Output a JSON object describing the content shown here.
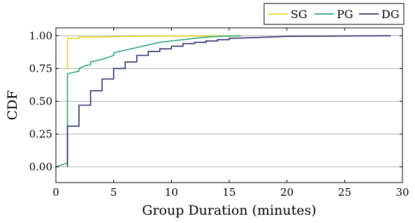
{
  "chart_data": {
    "type": "line",
    "title": "",
    "xlabel": "Group Duration (minutes)",
    "ylabel": "CDF",
    "xlim": [
      0,
      30
    ],
    "ylim": [
      -0.12,
      1.06
    ],
    "xticks": [
      0,
      5,
      10,
      15,
      20,
      25,
      30
    ],
    "yticks": [
      0.0,
      0.25,
      0.5,
      0.75,
      1.0
    ],
    "ytick_labels": [
      "0.00",
      "0.25",
      "0.50",
      "0.75",
      "1.00"
    ],
    "grid": "horizontal",
    "legend_position": "top-right, above plot",
    "step": true,
    "series": [
      {
        "name": "SG",
        "color": "#e6d81a",
        "points": [
          [
            0.9,
            0.75
          ],
          [
            1,
            0.75
          ],
          [
            1,
            0.98
          ],
          [
            2,
            0.98
          ],
          [
            2,
            0.99
          ],
          [
            4,
            0.99
          ],
          [
            6,
            0.995
          ],
          [
            10,
            0.997
          ],
          [
            16,
            1.0
          ]
        ]
      },
      {
        "name": "PG",
        "color": "#2ea67a",
        "points": [
          [
            0,
            0.0
          ],
          [
            1,
            0.03
          ],
          [
            1,
            0.71
          ],
          [
            1.5,
            0.72
          ],
          [
            2,
            0.73
          ],
          [
            2,
            0.75
          ],
          [
            2.5,
            0.77
          ],
          [
            3,
            0.78
          ],
          [
            3,
            0.8
          ],
          [
            4,
            0.82
          ],
          [
            5,
            0.85
          ],
          [
            5,
            0.87
          ],
          [
            6,
            0.89
          ],
          [
            7,
            0.91
          ],
          [
            8,
            0.93
          ],
          [
            9,
            0.95
          ],
          [
            10,
            0.96
          ],
          [
            11,
            0.97
          ],
          [
            12,
            0.98
          ],
          [
            13,
            0.99
          ],
          [
            14,
            0.995
          ],
          [
            16,
            1.0
          ]
        ]
      },
      {
        "name": "DG",
        "color": "#2e2f6e",
        "points": [
          [
            1,
            0.0
          ],
          [
            1,
            0.31
          ],
          [
            2,
            0.31
          ],
          [
            2,
            0.47
          ],
          [
            3,
            0.47
          ],
          [
            3,
            0.58
          ],
          [
            4,
            0.58
          ],
          [
            4,
            0.67
          ],
          [
            5,
            0.67
          ],
          [
            5,
            0.75
          ],
          [
            6,
            0.75
          ],
          [
            6,
            0.8
          ],
          [
            7,
            0.8
          ],
          [
            7,
            0.85
          ],
          [
            8,
            0.85
          ],
          [
            8,
            0.88
          ],
          [
            9,
            0.88
          ],
          [
            9,
            0.9
          ],
          [
            10,
            0.9
          ],
          [
            10,
            0.92
          ],
          [
            11,
            0.92
          ],
          [
            11,
            0.94
          ],
          [
            12,
            0.94
          ],
          [
            12,
            0.95
          ],
          [
            13,
            0.95
          ],
          [
            13,
            0.96
          ],
          [
            14,
            0.96
          ],
          [
            14,
            0.97
          ],
          [
            15,
            0.97
          ],
          [
            15,
            0.98
          ],
          [
            17,
            0.985
          ],
          [
            20,
            0.995
          ],
          [
            25,
            0.998
          ],
          [
            29,
            1.0
          ]
        ]
      }
    ]
  }
}
